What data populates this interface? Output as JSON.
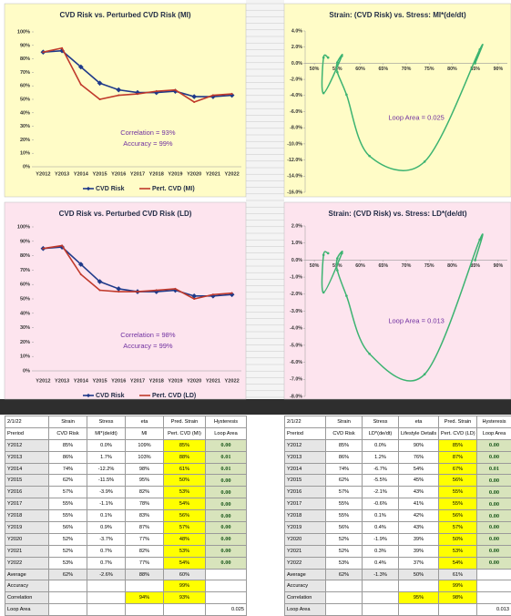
{
  "chart_data": [
    {
      "type": "line",
      "title": "CVD Risk vs. Perturbed CVD Risk (MI)",
      "categories": [
        "Y2012",
        "Y2013",
        "Y2014",
        "Y2015",
        "Y2016",
        "Y2017",
        "Y2018",
        "Y2019",
        "Y2020",
        "Y2021",
        "Y2022"
      ],
      "series": [
        {
          "name": "CVD Risk",
          "color": "#1f3a8a",
          "values": [
            85,
            86,
            74,
            62,
            57,
            55,
            55,
            56,
            52,
            52,
            53
          ]
        },
        {
          "name": "Pert. CVD (MI)",
          "color": "#c0392b",
          "values": [
            85,
            88,
            61,
            50,
            53,
            54,
            56,
            57,
            48,
            53,
            54
          ]
        }
      ],
      "ylim": [
        0,
        100
      ],
      "yticks": [
        {
          "value": 0,
          "label": "0%"
        },
        {
          "value": 10,
          "label": "10%"
        },
        {
          "value": 20,
          "label": "20%"
        },
        {
          "value": 30,
          "label": "30%"
        },
        {
          "value": 40,
          "label": "40%"
        },
        {
          "value": 50,
          "label": "50%"
        },
        {
          "value": 60,
          "label": "60%"
        },
        {
          "value": 70,
          "label": "70%"
        },
        {
          "value": 80,
          "label": "80%"
        },
        {
          "value": 90,
          "label": "90%"
        },
        {
          "value": 100,
          "label": "100%"
        }
      ],
      "annotations": [
        "Correlation = 93%",
        "Accuracy = 99%"
      ],
      "legend": "bottom",
      "background": "#fffcc7"
    },
    {
      "type": "scatter",
      "title": "Strain: (CVD Risk) vs. Stress: MI*(de/dt)",
      "x": [
        85,
        86,
        74,
        62,
        57,
        55,
        55,
        56,
        52,
        52,
        53
      ],
      "values": [
        0.0,
        1.7,
        -12.2,
        -11.5,
        -3.9,
        -1.1,
        0.1,
        0.9,
        -3.7,
        0.7,
        0.7
      ],
      "color": "#3cb371",
      "xlim": [
        48,
        92
      ],
      "xticks": [
        {
          "value": 50,
          "label": "50%"
        },
        {
          "value": 55,
          "label": "55%"
        },
        {
          "value": 60,
          "label": "60%"
        },
        {
          "value": 65,
          "label": "65%"
        },
        {
          "value": 70,
          "label": "70%"
        },
        {
          "value": 75,
          "label": "75%"
        },
        {
          "value": 80,
          "label": "80%"
        },
        {
          "value": 85,
          "label": "85%"
        },
        {
          "value": 90,
          "label": "90%"
        }
      ],
      "ylim": [
        -16,
        4
      ],
      "yticks": [
        {
          "value": 4,
          "label": "4.0%"
        },
        {
          "value": 2,
          "label": "2.0%"
        },
        {
          "value": 0,
          "label": "0.0%"
        },
        {
          "value": -2,
          "label": "-2.0%"
        },
        {
          "value": -4,
          "label": "-4.0%"
        },
        {
          "value": -6,
          "label": "-6.0%"
        },
        {
          "value": -8,
          "label": "-8.0%"
        },
        {
          "value": -10,
          "label": "-10.0%"
        },
        {
          "value": -12,
          "label": "-12.0%"
        },
        {
          "value": -14,
          "label": "-14.0%"
        },
        {
          "value": -16,
          "label": "-16.0%"
        }
      ],
      "annotations": [
        "Loop Area = 0.025"
      ],
      "background": "#fffcc7"
    },
    {
      "type": "line",
      "title": "CVD Risk vs. Perturbed CVD Risk (LD)",
      "categories": [
        "Y2012",
        "Y2013",
        "Y2014",
        "Y2015",
        "Y2016",
        "Y2017",
        "Y2018",
        "Y2019",
        "Y2020",
        "Y2021",
        "Y2022"
      ],
      "series": [
        {
          "name": "CVD Risk",
          "color": "#1f3a8a",
          "values": [
            85,
            86,
            74,
            62,
            57,
            55,
            55,
            56,
            52,
            52,
            53
          ]
        },
        {
          "name": "Pert. CVD (LD)",
          "color": "#c0392b",
          "values": [
            85,
            87,
            67,
            56,
            55,
            55,
            56,
            57,
            50,
            53,
            54
          ]
        }
      ],
      "ylim": [
        0,
        100
      ],
      "yticks": [
        {
          "value": 0,
          "label": "0%"
        },
        {
          "value": 10,
          "label": "10%"
        },
        {
          "value": 20,
          "label": "20%"
        },
        {
          "value": 30,
          "label": "30%"
        },
        {
          "value": 40,
          "label": "40%"
        },
        {
          "value": 50,
          "label": "50%"
        },
        {
          "value": 60,
          "label": "60%"
        },
        {
          "value": 70,
          "label": "70%"
        },
        {
          "value": 80,
          "label": "80%"
        },
        {
          "value": 90,
          "label": "90%"
        },
        {
          "value": 100,
          "label": "100%"
        }
      ],
      "annotations": [
        "Correlation = 98%",
        "Accuracy = 99%"
      ],
      "legend": "bottom",
      "background": "#fde4ee"
    },
    {
      "type": "scatter",
      "title": "Strain: (CVD Risk) vs. Stress: LD*(de/dt)",
      "x": [
        85,
        86,
        74,
        62,
        57,
        55,
        55,
        56,
        52,
        52,
        53
      ],
      "values": [
        0.0,
        1.2,
        -6.7,
        -5.5,
        -2.1,
        -0.6,
        0.1,
        0.4,
        -1.9,
        0.3,
        0.4
      ],
      "color": "#3cb371",
      "xlim": [
        48,
        92
      ],
      "xticks": [
        {
          "value": 50,
          "label": "50%"
        },
        {
          "value": 55,
          "label": "55%"
        },
        {
          "value": 60,
          "label": "60%"
        },
        {
          "value": 65,
          "label": "65%"
        },
        {
          "value": 70,
          "label": "70%"
        },
        {
          "value": 75,
          "label": "75%"
        },
        {
          "value": 80,
          "label": "80%"
        },
        {
          "value": 85,
          "label": "85%"
        },
        {
          "value": 90,
          "label": "90%"
        }
      ],
      "ylim": [
        -8,
        2
      ],
      "yticks": [
        {
          "value": 2,
          "label": "2.0%"
        },
        {
          "value": 1,
          "label": "1.0%"
        },
        {
          "value": 0,
          "label": "0.0%"
        },
        {
          "value": -1,
          "label": "-1.0%"
        },
        {
          "value": -2,
          "label": "-2.0%"
        },
        {
          "value": -3,
          "label": "-3.0%"
        },
        {
          "value": -4,
          "label": "-4.0%"
        },
        {
          "value": -5,
          "label": "-5.0%"
        },
        {
          "value": -6,
          "label": "-6.0%"
        },
        {
          "value": -7,
          "label": "-7.0%"
        },
        {
          "value": -8,
          "label": "-8.0%"
        }
      ],
      "annotations": [
        "Loop Area = 0.013"
      ],
      "background": "#fde4ee"
    }
  ],
  "tables": [
    {
      "rows": [
        [
          "2/1/22",
          "Strain",
          "Stress",
          "eta",
          "Pred. Strain",
          "Hysteresis"
        ],
        [
          "Preriod",
          "CVD Risk",
          "MI*(de/dt)",
          "MI",
          "Pert. CVD (MI)",
          "Loop Area"
        ],
        [
          "Y2012",
          "85%",
          "0.0%",
          "109%",
          "85%",
          "0.00"
        ],
        [
          "Y2013",
          "86%",
          "1.7%",
          "103%",
          "88%",
          "0.01"
        ],
        [
          "Y2014",
          "74%",
          "-12.2%",
          "98%",
          "61%",
          "0.01"
        ],
        [
          "Y2015",
          "62%",
          "-11.5%",
          "95%",
          "50%",
          "0.00"
        ],
        [
          "Y2016",
          "57%",
          "-3.9%",
          "82%",
          "53%",
          "0.00"
        ],
        [
          "Y2017",
          "55%",
          "-1.1%",
          "78%",
          "54%",
          "0.00"
        ],
        [
          "Y2018",
          "55%",
          "0.1%",
          "83%",
          "56%",
          "0.00"
        ],
        [
          "Y2019",
          "56%",
          "0.9%",
          "87%",
          "57%",
          "0.00"
        ],
        [
          "Y2020",
          "52%",
          "-3.7%",
          "77%",
          "48%",
          "0.00"
        ],
        [
          "Y2021",
          "52%",
          "0.7%",
          "82%",
          "53%",
          "0.00"
        ],
        [
          "Y2022",
          "53%",
          "0.7%",
          "77%",
          "54%",
          "0.00"
        ],
        [
          "Average",
          "62%",
          "-2.6%",
          "88%",
          "60%",
          null
        ],
        [
          "Accuracy",
          null,
          null,
          null,
          "99%",
          null
        ],
        [
          "Correlation",
          null,
          null,
          "94%",
          "93%",
          null
        ],
        [
          "Loop Area",
          null,
          null,
          null,
          null,
          "0.025"
        ]
      ]
    },
    {
      "rows": [
        [
          "2/1/22",
          "Strain",
          "Stress",
          "eta",
          "Pred. Strain",
          "Hysteresis"
        ],
        [
          "Preriod",
          "CVD Risk",
          "LD*(de/dt)",
          "Lifestyle Details",
          "Pert. CVD (LD)",
          "Loop Area"
        ],
        [
          "Y2012",
          "85%",
          "0.0%",
          "90%",
          "85%",
          "0.00"
        ],
        [
          "Y2013",
          "86%",
          "1.2%",
          "76%",
          "87%",
          "0.00"
        ],
        [
          "Y2014",
          "74%",
          "-6.7%",
          "54%",
          "67%",
          "0.01"
        ],
        [
          "Y2015",
          "62%",
          "-5.5%",
          "45%",
          "56%",
          "0.00"
        ],
        [
          "Y2016",
          "57%",
          "-2.1%",
          "43%",
          "55%",
          "0.00"
        ],
        [
          "Y2017",
          "55%",
          "-0.6%",
          "41%",
          "55%",
          "0.00"
        ],
        [
          "Y2018",
          "55%",
          "0.1%",
          "42%",
          "56%",
          "0.00"
        ],
        [
          "Y2019",
          "56%",
          "0.4%",
          "43%",
          "57%",
          "0.00"
        ],
        [
          "Y2020",
          "52%",
          "-1.9%",
          "39%",
          "50%",
          "0.00"
        ],
        [
          "Y2021",
          "52%",
          "0.3%",
          "39%",
          "53%",
          "0.00"
        ],
        [
          "Y2022",
          "53%",
          "0.4%",
          "37%",
          "54%",
          "0.00"
        ],
        [
          "Average",
          "62%",
          "-1.3%",
          "50%",
          "61%",
          null
        ],
        [
          "Accuracy",
          null,
          null,
          null,
          "99%",
          null
        ],
        [
          "Correlation",
          null,
          null,
          "95%",
          "98%",
          null
        ],
        [
          "Loop Area",
          null,
          null,
          null,
          null,
          "0.013"
        ]
      ]
    }
  ]
}
